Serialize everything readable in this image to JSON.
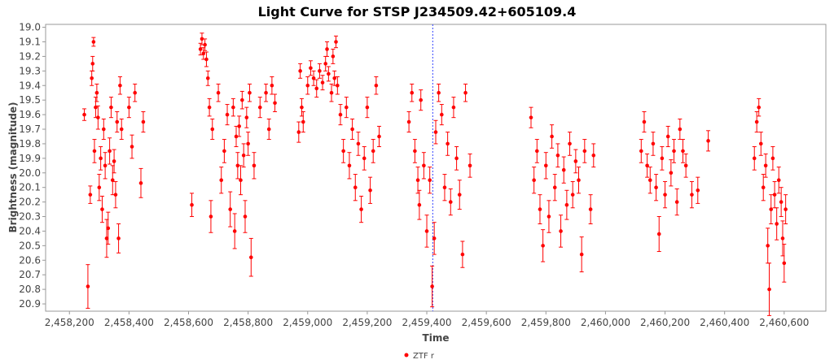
{
  "chart_data": {
    "type": "scatter",
    "title": "Light Curve for STSP J234509.42+605109.4",
    "xlabel": "Time",
    "ylabel": "Brightness (magnitude)",
    "xlim": [
      2458120,
      2460740
    ],
    "ylim": [
      20.95,
      18.98
    ],
    "y_inverted": true,
    "x_ticks": [
      2458200,
      2458400,
      2458600,
      2458800,
      2459000,
      2459200,
      2459400,
      2459600,
      2459800,
      2460000,
      2460200,
      2460400,
      2460600
    ],
    "x_tick_labels": [
      "2,458,200",
      "2,458,400",
      "2,458,600",
      "2,458,800",
      "2,459,000",
      "2,459,200",
      "2,459,400",
      "2,459,600",
      "2,459,800",
      "2,460,000",
      "2,460,200",
      "2,460,400",
      "2,460,600"
    ],
    "y_ticks": [
      19.0,
      19.1,
      19.2,
      19.3,
      19.4,
      19.5,
      19.6,
      19.7,
      19.8,
      19.9,
      20.0,
      20.1,
      20.2,
      20.3,
      20.4,
      20.5,
      20.6,
      20.7,
      20.8,
      20.9
    ],
    "y_tick_labels": [
      "19.0",
      "19.1",
      "19.2",
      "19.3",
      "19.4",
      "19.5",
      "19.6",
      "19.7",
      "19.8",
      "19.9",
      "20.0",
      "20.1",
      "20.2",
      "20.3",
      "20.4",
      "20.5",
      "20.6",
      "20.7",
      "20.8",
      "20.9"
    ],
    "marker_line_x": 2459420,
    "grid": false,
    "legend_position": "bottom",
    "series": [
      {
        "name": "ZTF r",
        "color": "#ff0000",
        "points": [
          [
            2458250,
            19.6,
            0.04
          ],
          [
            2458262,
            20.78,
            0.15
          ],
          [
            2458270,
            20.15,
            0.06
          ],
          [
            2458275,
            19.35,
            0.05
          ],
          [
            2458278,
            19.25,
            0.05
          ],
          [
            2458281,
            19.1,
            0.03
          ],
          [
            2458284,
            19.85,
            0.08
          ],
          [
            2458288,
            19.55,
            0.07
          ],
          [
            2458292,
            19.45,
            0.06
          ],
          [
            2458296,
            19.62,
            0.08
          ],
          [
            2458300,
            20.1,
            0.09
          ],
          [
            2458305,
            19.9,
            0.08
          ],
          [
            2458310,
            20.25,
            0.09
          ],
          [
            2458315,
            19.7,
            0.07
          ],
          [
            2458320,
            19.95,
            0.09
          ],
          [
            2458325,
            20.45,
            0.13
          ],
          [
            2458330,
            20.38,
            0.11
          ],
          [
            2458335,
            19.85,
            0.09
          ],
          [
            2458340,
            19.55,
            0.07
          ],
          [
            2458345,
            20.05,
            0.1
          ],
          [
            2458350,
            19.92,
            0.08
          ],
          [
            2458355,
            20.15,
            0.09
          ],
          [
            2458360,
            19.65,
            0.07
          ],
          [
            2458365,
            20.45,
            0.1
          ],
          [
            2458370,
            19.4,
            0.06
          ],
          [
            2458375,
            19.7,
            0.07
          ],
          [
            2458400,
            19.55,
            0.07
          ],
          [
            2458410,
            19.82,
            0.08
          ],
          [
            2458420,
            19.45,
            0.06
          ],
          [
            2458440,
            20.07,
            0.1
          ],
          [
            2458448,
            19.65,
            0.07
          ],
          [
            2458611,
            20.22,
            0.08
          ],
          [
            2458640,
            19.15,
            0.04
          ],
          [
            2458645,
            19.08,
            0.04
          ],
          [
            2458650,
            19.18,
            0.04
          ],
          [
            2458655,
            19.12,
            0.04
          ],
          [
            2458660,
            19.22,
            0.05
          ],
          [
            2458665,
            19.35,
            0.05
          ],
          [
            2458670,
            19.55,
            0.06
          ],
          [
            2458675,
            20.3,
            0.11
          ],
          [
            2458680,
            19.7,
            0.07
          ],
          [
            2458700,
            19.45,
            0.06
          ],
          [
            2458710,
            20.05,
            0.09
          ],
          [
            2458720,
            19.85,
            0.08
          ],
          [
            2458730,
            19.6,
            0.07
          ],
          [
            2458740,
            20.25,
            0.12
          ],
          [
            2458750,
            19.55,
            0.06
          ],
          [
            2458755,
            20.4,
            0.12
          ],
          [
            2458760,
            19.75,
            0.07
          ],
          [
            2458765,
            19.95,
            0.09
          ],
          [
            2458770,
            19.68,
            0.07
          ],
          [
            2458775,
            20.05,
            0.1
          ],
          [
            2458780,
            19.5,
            0.06
          ],
          [
            2458785,
            19.88,
            0.08
          ],
          [
            2458790,
            20.3,
            0.11
          ],
          [
            2458795,
            19.62,
            0.07
          ],
          [
            2458800,
            19.8,
            0.08
          ],
          [
            2458805,
            19.45,
            0.06
          ],
          [
            2458810,
            20.58,
            0.13
          ],
          [
            2458820,
            19.95,
            0.09
          ],
          [
            2458840,
            19.55,
            0.07
          ],
          [
            2458860,
            19.45,
            0.06
          ],
          [
            2458870,
            19.7,
            0.07
          ],
          [
            2458880,
            19.4,
            0.06
          ],
          [
            2458890,
            19.52,
            0.06
          ],
          [
            2458970,
            19.72,
            0.07
          ],
          [
            2458975,
            19.3,
            0.05
          ],
          [
            2458980,
            19.55,
            0.06
          ],
          [
            2458985,
            19.65,
            0.07
          ],
          [
            2459000,
            19.4,
            0.06
          ],
          [
            2459010,
            19.28,
            0.05
          ],
          [
            2459020,
            19.35,
            0.05
          ],
          [
            2459030,
            19.42,
            0.06
          ],
          [
            2459040,
            19.3,
            0.05
          ],
          [
            2459050,
            19.38,
            0.05
          ],
          [
            2459060,
            19.25,
            0.05
          ],
          [
            2459065,
            19.15,
            0.05
          ],
          [
            2459070,
            19.32,
            0.05
          ],
          [
            2459080,
            19.45,
            0.06
          ],
          [
            2459085,
            19.2,
            0.05
          ],
          [
            2459090,
            19.35,
            0.05
          ],
          [
            2459095,
            19.1,
            0.04
          ],
          [
            2459100,
            19.4,
            0.06
          ],
          [
            2459110,
            19.6,
            0.07
          ],
          [
            2459120,
            19.85,
            0.08
          ],
          [
            2459130,
            19.55,
            0.07
          ],
          [
            2459140,
            19.95,
            0.09
          ],
          [
            2459150,
            19.7,
            0.07
          ],
          [
            2459160,
            20.1,
            0.09
          ],
          [
            2459170,
            19.8,
            0.08
          ],
          [
            2459180,
            20.25,
            0.09
          ],
          [
            2459190,
            19.9,
            0.08
          ],
          [
            2459200,
            19.55,
            0.07
          ],
          [
            2459210,
            20.12,
            0.09
          ],
          [
            2459220,
            19.85,
            0.08
          ],
          [
            2459230,
            19.4,
            0.06
          ],
          [
            2459240,
            19.75,
            0.07
          ],
          [
            2459340,
            19.65,
            0.07
          ],
          [
            2459350,
            19.45,
            0.06
          ],
          [
            2459360,
            19.85,
            0.08
          ],
          [
            2459370,
            20.05,
            0.09
          ],
          [
            2459375,
            20.22,
            0.1
          ],
          [
            2459380,
            19.5,
            0.07
          ],
          [
            2459390,
            19.95,
            0.09
          ],
          [
            2459400,
            20.4,
            0.11
          ],
          [
            2459410,
            20.05,
            0.09
          ],
          [
            2459418,
            20.78,
            0.14
          ],
          [
            2459425,
            20.45,
            0.11
          ],
          [
            2459430,
            19.72,
            0.08
          ],
          [
            2459440,
            19.45,
            0.06
          ],
          [
            2459450,
            19.6,
            0.07
          ],
          [
            2459460,
            20.1,
            0.09
          ],
          [
            2459470,
            19.8,
            0.08
          ],
          [
            2459480,
            20.2,
            0.09
          ],
          [
            2459490,
            19.55,
            0.07
          ],
          [
            2459500,
            19.9,
            0.08
          ],
          [
            2459510,
            20.15,
            0.1
          ],
          [
            2459520,
            20.56,
            0.09
          ],
          [
            2459530,
            19.45,
            0.06
          ],
          [
            2459545,
            19.95,
            0.08
          ],
          [
            2459750,
            19.62,
            0.07
          ],
          [
            2459760,
            20.05,
            0.09
          ],
          [
            2459770,
            19.85,
            0.08
          ],
          [
            2459780,
            20.25,
            0.1
          ],
          [
            2459790,
            20.5,
            0.11
          ],
          [
            2459800,
            19.95,
            0.09
          ],
          [
            2459810,
            20.3,
            0.11
          ],
          [
            2459820,
            19.75,
            0.08
          ],
          [
            2459830,
            20.1,
            0.09
          ],
          [
            2459840,
            19.88,
            0.08
          ],
          [
            2459850,
            20.4,
            0.11
          ],
          [
            2459860,
            19.98,
            0.09
          ],
          [
            2459870,
            20.22,
            0.1
          ],
          [
            2459880,
            19.8,
            0.08
          ],
          [
            2459890,
            20.15,
            0.09
          ],
          [
            2459900,
            19.92,
            0.08
          ],
          [
            2459910,
            20.05,
            0.09
          ],
          [
            2459920,
            20.56,
            0.12
          ],
          [
            2459930,
            19.85,
            0.08
          ],
          [
            2459950,
            20.25,
            0.1
          ],
          [
            2459960,
            19.88,
            0.08
          ],
          [
            2460120,
            19.85,
            0.08
          ],
          [
            2460130,
            19.65,
            0.07
          ],
          [
            2460140,
            19.95,
            0.08
          ],
          [
            2460150,
            20.05,
            0.09
          ],
          [
            2460160,
            19.8,
            0.08
          ],
          [
            2460170,
            20.1,
            0.09
          ],
          [
            2460180,
            20.42,
            0.12
          ],
          [
            2460190,
            19.9,
            0.08
          ],
          [
            2460200,
            20.15,
            0.09
          ],
          [
            2460210,
            19.75,
            0.07
          ],
          [
            2460220,
            20.0,
            0.09
          ],
          [
            2460230,
            19.85,
            0.08
          ],
          [
            2460240,
            20.2,
            0.09
          ],
          [
            2460250,
            19.7,
            0.07
          ],
          [
            2460260,
            19.85,
            0.08
          ],
          [
            2460270,
            19.95,
            0.08
          ],
          [
            2460290,
            20.15,
            0.09
          ],
          [
            2460310,
            20.12,
            0.09
          ],
          [
            2460345,
            19.78,
            0.07
          ],
          [
            2460500,
            19.9,
            0.08
          ],
          [
            2460508,
            19.65,
            0.07
          ],
          [
            2460515,
            19.55,
            0.06
          ],
          [
            2460522,
            19.8,
            0.08
          ],
          [
            2460530,
            20.1,
            0.09
          ],
          [
            2460538,
            19.95,
            0.08
          ],
          [
            2460545,
            20.5,
            0.12
          ],
          [
            2460550,
            20.8,
            0.18
          ],
          [
            2460556,
            20.25,
            0.1
          ],
          [
            2460562,
            19.9,
            0.08
          ],
          [
            2460568,
            20.15,
            0.09
          ],
          [
            2460575,
            20.35,
            0.11
          ],
          [
            2460582,
            20.05,
            0.09
          ],
          [
            2460590,
            20.2,
            0.1
          ],
          [
            2460595,
            20.45,
            0.12
          ],
          [
            2460600,
            20.62,
            0.13
          ],
          [
            2460605,
            20.25,
            0.1
          ]
        ]
      }
    ]
  }
}
